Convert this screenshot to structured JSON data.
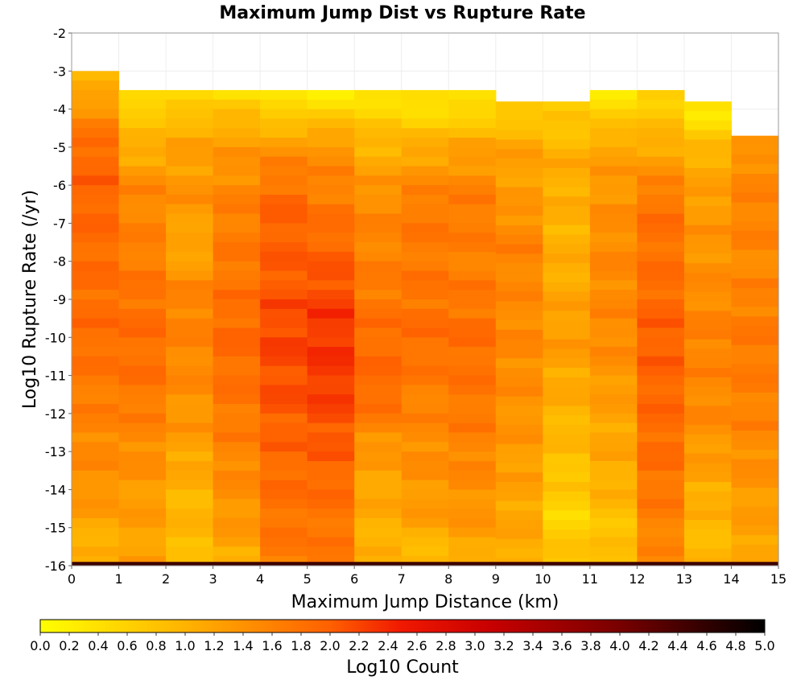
{
  "chart_data": {
    "type": "heatmap",
    "title": "Maximum Jump Dist vs Rupture Rate",
    "xlabel": "Maximum Jump Distance (km)",
    "ylabel": "Log10 Rupture Rate (/yr)",
    "colorbar_label": "Log10 Count",
    "xlim": [
      0,
      15
    ],
    "ylim": [
      -16,
      -2
    ],
    "x_ticks": [
      "0",
      "1",
      "2",
      "3",
      "4",
      "5",
      "6",
      "7",
      "8",
      "9",
      "10",
      "11",
      "12",
      "13",
      "14",
      "15"
    ],
    "y_ticks": [
      "-2",
      "-3",
      "-4",
      "-5",
      "-6",
      "-7",
      "-8",
      "-9",
      "-10",
      "-11",
      "-12",
      "-13",
      "-14",
      "-15",
      "-16"
    ],
    "colorbar_ticks": [
      "0.0",
      "0.2",
      "0.4",
      "0.6",
      "0.8",
      "1.0",
      "1.2",
      "1.4",
      "1.6",
      "1.8",
      "2.0",
      "2.2",
      "2.4",
      "2.6",
      "2.8",
      "3.0",
      "3.2",
      "3.4",
      "3.6",
      "3.8",
      "4.0",
      "4.2",
      "4.4",
      "4.6",
      "4.8",
      "5.0"
    ],
    "colorbar_range": [
      0,
      5
    ],
    "grid": true,
    "y_bin_width": 0.25,
    "columns": [
      {
        "x_start": 0,
        "y_top": -3.0,
        "profile": [
          [
            -3.0,
            0.8
          ],
          [
            -4.0,
            1.4
          ],
          [
            -5.0,
            1.9
          ],
          [
            -6.0,
            1.95
          ],
          [
            -8.0,
            1.85
          ],
          [
            -10.0,
            1.85
          ],
          [
            -12.0,
            1.6
          ],
          [
            -13.0,
            1.5
          ],
          [
            -14.0,
            1.4
          ],
          [
            -15.5,
            1.0
          ]
        ]
      },
      {
        "x_start": 1,
        "y_top": -3.5,
        "profile": [
          [
            -3.5,
            0.3
          ],
          [
            -4.2,
            0.8
          ],
          [
            -5.0,
            1.0
          ],
          [
            -6.0,
            1.5
          ],
          [
            -7.5,
            1.6
          ],
          [
            -9.5,
            1.85
          ],
          [
            -11.0,
            1.8
          ],
          [
            -12.5,
            1.55
          ],
          [
            -14.0,
            1.3
          ],
          [
            -15.5,
            1.2
          ]
        ]
      },
      {
        "x_start": 2,
        "y_top": -3.5,
        "profile": [
          [
            -3.5,
            0.3
          ],
          [
            -4.2,
            0.9
          ],
          [
            -5.0,
            1.2
          ],
          [
            -6.5,
            1.4
          ],
          [
            -7.5,
            1.1
          ],
          [
            -9.0,
            1.6
          ],
          [
            -11.0,
            1.5
          ],
          [
            -12.5,
            1.3
          ],
          [
            -14.0,
            1.0
          ],
          [
            -15.5,
            0.9
          ]
        ]
      },
      {
        "x_start": 3,
        "y_top": -3.5,
        "profile": [
          [
            -3.5,
            0.3
          ],
          [
            -4.3,
            1.0
          ],
          [
            -5.0,
            1.3
          ],
          [
            -6.5,
            1.6
          ],
          [
            -8.0,
            1.7
          ],
          [
            -10.0,
            1.9
          ],
          [
            -12.0,
            1.7
          ],
          [
            -13.5,
            1.5
          ],
          [
            -15.0,
            1.3
          ],
          [
            -15.7,
            1.1
          ]
        ]
      },
      {
        "x_start": 4,
        "y_top": -3.5,
        "profile": [
          [
            -3.5,
            0.4
          ],
          [
            -4.2,
            0.6
          ],
          [
            -5.0,
            1.4
          ],
          [
            -6.5,
            1.95
          ],
          [
            -8.0,
            2.0
          ],
          [
            -10.0,
            2.2
          ],
          [
            -11.5,
            2.1
          ],
          [
            -13.0,
            1.9
          ],
          [
            -14.5,
            1.8
          ],
          [
            -15.7,
            1.7
          ]
        ]
      },
      {
        "x_start": 5,
        "y_top": -3.5,
        "profile": [
          [
            -3.5,
            0.2
          ],
          [
            -4.2,
            0.7
          ],
          [
            -5.0,
            1.4
          ],
          [
            -6.5,
            1.7
          ],
          [
            -8.0,
            2.0
          ],
          [
            -9.5,
            2.3
          ],
          [
            -11.0,
            2.3
          ],
          [
            -13.0,
            2.0
          ],
          [
            -14.5,
            1.8
          ],
          [
            -15.7,
            1.7
          ]
        ]
      },
      {
        "x_start": 6,
        "y_top": -3.5,
        "profile": [
          [
            -3.5,
            0.3
          ],
          [
            -4.3,
            0.7
          ],
          [
            -5.0,
            1.0
          ],
          [
            -6.5,
            1.5
          ],
          [
            -8.0,
            1.6
          ],
          [
            -10.0,
            1.85
          ],
          [
            -11.5,
            1.9
          ],
          [
            -13.0,
            1.3
          ],
          [
            -14.5,
            1.1
          ],
          [
            -15.7,
            1.0
          ]
        ]
      },
      {
        "x_start": 7,
        "y_top": -3.5,
        "profile": [
          [
            -3.5,
            0.3
          ],
          [
            -4.3,
            0.6
          ],
          [
            -5.0,
            1.1
          ],
          [
            -6.5,
            1.7
          ],
          [
            -8.0,
            1.7
          ],
          [
            -10.0,
            1.85
          ],
          [
            -12.0,
            1.55
          ],
          [
            -13.5,
            1.4
          ],
          [
            -15.0,
            1.2
          ],
          [
            -15.7,
            0.8
          ]
        ]
      },
      {
        "x_start": 8,
        "y_top": -3.5,
        "profile": [
          [
            -3.5,
            0.2
          ],
          [
            -4.3,
            0.7
          ],
          [
            -5.0,
            1.2
          ],
          [
            -6.5,
            1.7
          ],
          [
            -8.0,
            1.6
          ],
          [
            -10.0,
            1.85
          ],
          [
            -12.0,
            1.7
          ],
          [
            -13.5,
            1.5
          ],
          [
            -15.0,
            1.3
          ],
          [
            -15.7,
            1.1
          ]
        ]
      },
      {
        "x_start": 9,
        "y_top": -3.8,
        "profile": [
          [
            -3.8,
            0.5
          ],
          [
            -4.5,
            0.9
          ],
          [
            -5.0,
            1.2
          ],
          [
            -6.5,
            1.3
          ],
          [
            -7.5,
            1.6
          ],
          [
            -9.0,
            1.5
          ],
          [
            -10.5,
            1.5
          ],
          [
            -12.0,
            1.4
          ],
          [
            -14.0,
            1.2
          ],
          [
            -15.7,
            1.1
          ]
        ]
      },
      {
        "x_start": 10,
        "y_top": -3.8,
        "profile": [
          [
            -3.8,
            0.6
          ],
          [
            -4.5,
            0.8
          ],
          [
            -5.5,
            1.1
          ],
          [
            -7.0,
            1.0
          ],
          [
            -8.5,
            1.1
          ],
          [
            -10.0,
            1.3
          ],
          [
            -12.0,
            1.0
          ],
          [
            -13.5,
            0.8
          ],
          [
            -15.0,
            0.5
          ],
          [
            -15.7,
            0.9
          ]
        ]
      },
      {
        "x_start": 11,
        "y_top": -3.5,
        "profile": [
          [
            -3.5,
            0.3
          ],
          [
            -4.3,
            0.7
          ],
          [
            -5.0,
            1.2
          ],
          [
            -6.5,
            1.4
          ],
          [
            -8.0,
            1.5
          ],
          [
            -10.0,
            1.5
          ],
          [
            -12.0,
            1.2
          ],
          [
            -13.5,
            1.1
          ],
          [
            -15.0,
            0.8
          ],
          [
            -15.7,
            0.8
          ]
        ]
      },
      {
        "x_start": 12,
        "y_top": -3.5,
        "profile": [
          [
            -3.5,
            0.6
          ],
          [
            -4.3,
            0.8
          ],
          [
            -5.0,
            1.1
          ],
          [
            -6.5,
            1.8
          ],
          [
            -8.0,
            1.8
          ],
          [
            -10.0,
            2.0
          ],
          [
            -12.0,
            1.9
          ],
          [
            -13.5,
            1.8
          ],
          [
            -15.0,
            1.6
          ],
          [
            -15.7,
            1.5
          ]
        ]
      },
      {
        "x_start": 13,
        "y_top": -3.8,
        "profile": [
          [
            -3.8,
            0.4
          ],
          [
            -4.5,
            0.4
          ],
          [
            -5.0,
            1.0
          ],
          [
            -6.5,
            1.3
          ],
          [
            -8.0,
            1.4
          ],
          [
            -10.0,
            1.6
          ],
          [
            -12.0,
            1.5
          ],
          [
            -13.5,
            1.2
          ],
          [
            -14.5,
            1.0
          ],
          [
            -15.7,
            0.9
          ]
        ]
      },
      {
        "x_start": 14,
        "y_top": -4.7,
        "profile": [
          [
            -4.7,
            1.2
          ],
          [
            -5.5,
            1.5
          ],
          [
            -7.0,
            1.6
          ],
          [
            -8.0,
            1.5
          ],
          [
            -10.0,
            1.7
          ],
          [
            -12.0,
            1.6
          ],
          [
            -13.5,
            1.4
          ],
          [
            -15.0,
            1.2
          ],
          [
            -15.7,
            1.2
          ]
        ]
      }
    ],
    "bottom_band": {
      "y_range": [
        -16,
        -15.9
      ],
      "value": 4.5
    }
  }
}
